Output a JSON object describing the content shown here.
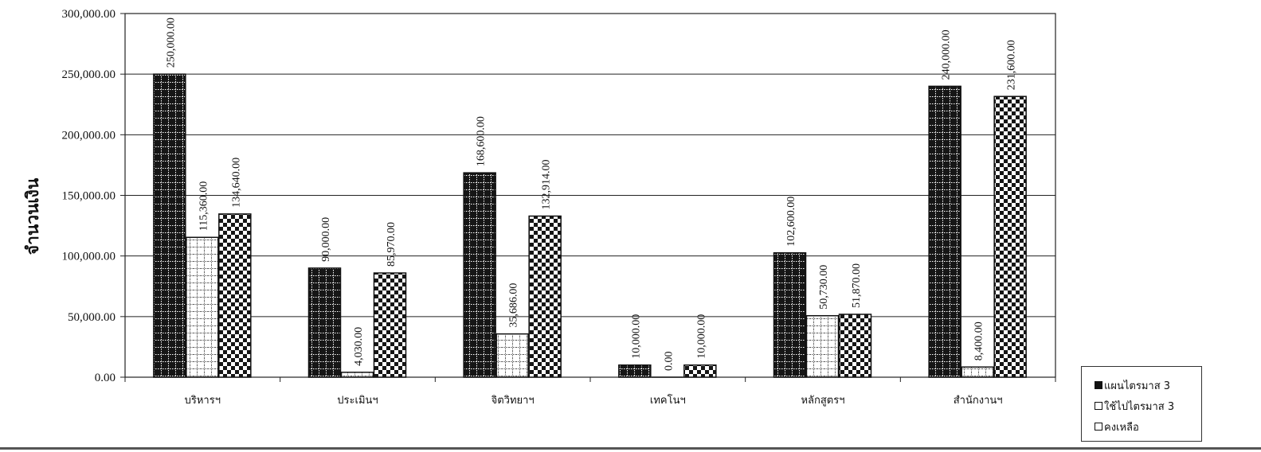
{
  "chart_data": {
    "type": "bar",
    "title": "",
    "xlabel": "",
    "ylabel": "จำนวนเงิน",
    "ylim": [
      0,
      300000
    ],
    "yticks": [
      0,
      50000,
      100000,
      150000,
      200000,
      250000,
      300000
    ],
    "ytick_labels": [
      "0.00",
      "50,000.00",
      "100,000.00",
      "150,000.00",
      "200,000.00",
      "250,000.00",
      "300,000.00"
    ],
    "grid": true,
    "legend_position": "bottom-right, outside plot",
    "categories": [
      "บริหารฯ",
      "ประเมินฯ",
      "จิตวิทยาฯ",
      "เทคโนฯ",
      "หลักสูตรฯ",
      "สำนักงานฯ"
    ],
    "series": [
      {
        "name": "แผนไตรมาส 3",
        "values": [
          250000,
          90000,
          168600,
          10000,
          102600,
          240000
        ],
        "labels": [
          "250,000.00",
          "90,000.00",
          "168,600.00",
          "10,000.00",
          "102,600.00",
          "240,000.00"
        ],
        "color": "#1a1a1a",
        "pattern": "dark-grid"
      },
      {
        "name": "ใช้ไปไตรมาส 3",
        "values": [
          115360,
          4030,
          35686,
          0,
          50730,
          8400
        ],
        "labels": [
          "115,360.00",
          "4,030.00",
          "35,686.00",
          "0.00",
          "50,730.00",
          "8,400.00"
        ],
        "color": "#ffffff",
        "pattern": "dotted-grid"
      },
      {
        "name": "คงเหลือ",
        "values": [
          134640,
          85970,
          132914,
          10000,
          51870,
          231600
        ],
        "labels": [
          "134,640.00",
          "85,970.00",
          "132,914.00",
          "10,000.00",
          "51,870.00",
          "231,600.00"
        ],
        "color": "#1a1a1a",
        "pattern": "checkerboard"
      }
    ]
  }
}
